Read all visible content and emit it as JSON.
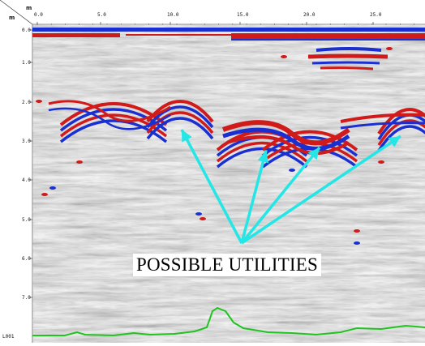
{
  "corner": {
    "x_unit": "m",
    "y_unit": "m"
  },
  "axes": {
    "x_ticks": [
      "0.0",
      "5.0",
      "10.0",
      "15.0",
      "20.0",
      "25.0"
    ],
    "y_ticks": [
      "0.0",
      "1.0",
      "2.0",
      "3.0",
      "4.0",
      "5.0",
      "6.0",
      "7.0"
    ]
  },
  "footer": {
    "line_id": "L001"
  },
  "annotation": {
    "label": "POSSIBLE UTILITIES",
    "arrow_color": "#24e6e6",
    "target_count": 5
  },
  "colors": {
    "positive_reflection": "#d11a1a",
    "negative_reflection": "#1a2fd1",
    "trace_line": "#1fc41f",
    "arrow": "#24e6e6"
  }
}
